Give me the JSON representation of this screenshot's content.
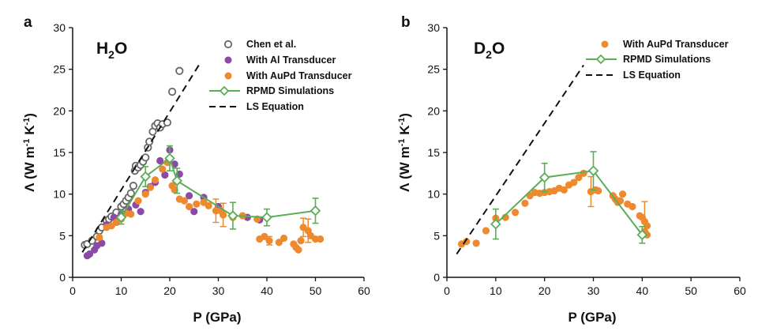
{
  "colors": {
    "chen": "#666666",
    "al": "#8b4aa8",
    "aupd": "#ee8a2d",
    "rpmd": "#5aae56",
    "ls": "#111111",
    "axis": "#111111"
  },
  "chart_data": [
    {
      "type": "scatter",
      "panel_letter": "a",
      "panel_title_main": "H",
      "panel_title_sub": "2",
      "panel_title_end": "O",
      "xlabel": "P (GPa)",
      "ylabel_main": "Λ (W m",
      "ylabel_sup1": "-1",
      "ylabel_mid": " K",
      "ylabel_sup2": "-1",
      "ylabel_end": ")",
      "xlim": [
        0,
        60
      ],
      "ylim": [
        0,
        30
      ],
      "xticks": [
        "0",
        "10",
        "20",
        "30",
        "40",
        "50",
        "60"
      ],
      "yticks": [
        "0",
        "5",
        "10",
        "15",
        "20",
        "25",
        "30"
      ],
      "legend": [
        "Chen et al.",
        "With Al Transducer",
        "With AuPd Transducer",
        "RPMD Simulations",
        "LS Equation"
      ],
      "series": [
        {
          "name": "Chen et al.",
          "style": "open-circle",
          "points": [
            [
              2.5,
              3.9
            ],
            [
              3,
              4
            ],
            [
              4,
              4.4
            ],
            [
              5,
              4.9
            ],
            [
              5.5,
              5.6
            ],
            [
              6,
              6
            ],
            [
              7,
              6.8
            ],
            [
              7.5,
              7
            ],
            [
              8,
              7.3
            ],
            [
              9,
              7.8
            ],
            [
              10,
              8.5
            ],
            [
              10.5,
              8.8
            ],
            [
              11,
              9.2
            ],
            [
              11.5,
              9.6
            ],
            [
              12,
              10.1
            ],
            [
              12.5,
              11
            ],
            [
              12.8,
              12.8
            ],
            [
              13,
              13.4
            ],
            [
              13.5,
              13.2
            ],
            [
              14,
              13.5
            ],
            [
              14.5,
              13.9
            ],
            [
              15,
              14.4
            ],
            [
              15.5,
              15.6
            ],
            [
              15.8,
              16.3
            ],
            [
              16.5,
              17.5
            ],
            [
              17,
              18.2
            ],
            [
              17.5,
              18.5
            ],
            [
              18,
              18
            ],
            [
              18.5,
              18.4
            ],
            [
              19.5,
              18.6
            ],
            [
              20.5,
              22.3
            ],
            [
              22,
              24.8
            ]
          ]
        },
        {
          "name": "With Al Transducer",
          "style": "filled-circle",
          "points": [
            [
              3,
              2.6
            ],
            [
              3.5,
              2.8
            ],
            [
              4.5,
              3.3
            ],
            [
              5,
              3.8
            ],
            [
              6,
              4.1
            ],
            [
              7,
              6.3
            ],
            [
              8.5,
              7.2
            ],
            [
              9.5,
              7.1
            ],
            [
              10,
              7.6
            ],
            [
              11.5,
              8.2
            ],
            [
              13,
              8.7
            ],
            [
              14,
              7.9
            ],
            [
              15,
              10.2
            ],
            [
              16,
              10.9
            ],
            [
              17,
              11.4
            ],
            [
              18,
              14
            ],
            [
              19,
              12.3
            ],
            [
              20,
              15.3
            ],
            [
              21,
              13.6
            ],
            [
              22,
              12.4
            ],
            [
              24,
              9.8
            ],
            [
              25,
              7.9
            ],
            [
              27,
              9.6
            ],
            [
              30,
              8.5
            ],
            [
              33,
              7.4
            ],
            [
              36,
              7.2
            ],
            [
              38.5,
              6.9
            ]
          ]
        },
        {
          "name": "With AuPd Transducer",
          "style": "filled-circle",
          "points": [
            [
              5.5,
              4.8
            ],
            [
              7,
              6
            ],
            [
              8,
              6.2
            ],
            [
              9,
              6.6
            ],
            [
              10,
              7
            ],
            [
              11,
              7.7
            ],
            [
              12,
              7.6
            ],
            [
              13.5,
              9.2
            ],
            [
              15,
              10
            ],
            [
              16,
              10.8
            ],
            [
              17,
              11.7
            ],
            [
              18.5,
              13
            ],
            [
              19.5,
              13.8
            ],
            [
              20.5,
              11
            ],
            [
              21,
              10.5
            ],
            [
              22,
              9.4
            ],
            [
              23,
              9.2
            ],
            [
              24,
              8.5
            ],
            [
              25.5,
              8.8
            ],
            [
              27,
              9
            ],
            [
              28,
              8.6
            ],
            [
              29.5,
              8
            ],
            [
              30.5,
              8
            ],
            [
              31,
              7.5
            ],
            [
              33,
              7.2
            ],
            [
              35,
              7.4
            ],
            [
              38,
              7
            ],
            [
              38.5,
              4.6
            ],
            [
              39.5,
              4.9
            ],
            [
              40.5,
              4.4
            ],
            [
              42.5,
              4.2
            ],
            [
              43.5,
              4.7
            ],
            [
              45.5,
              4
            ],
            [
              46,
              3.6
            ],
            [
              46.5,
              3.3
            ],
            [
              47,
              4.4
            ],
            [
              47.5,
              6
            ],
            [
              48.5,
              5.6
            ],
            [
              49,
              5
            ],
            [
              50,
              4.6
            ],
            [
              51,
              4.6
            ]
          ],
          "error_bars": [
            [
              29.5,
              8,
              1.4
            ],
            [
              31,
              7.5,
              1.4
            ],
            [
              40.5,
              4.4,
              0.5
            ],
            [
              47.5,
              6,
              1.1
            ],
            [
              48.5,
              5.6,
              1.4
            ]
          ]
        },
        {
          "name": "RPMD Simulations",
          "style": "open-diamond-line",
          "points": [
            [
              10,
              7.2
            ],
            [
              15,
              12.1
            ],
            [
              20,
              14.3
            ],
            [
              21.5,
              11.6
            ],
            [
              33,
              7.4
            ],
            [
              40,
              7.2
            ],
            [
              50,
              8
            ]
          ],
          "errors": [
            0.8,
            1.2,
            1.5,
            1.5,
            1.6,
            1.0,
            1.5
          ]
        },
        {
          "name": "LS Equation",
          "style": "dashed-line",
          "points": [
            [
              2,
              3
            ],
            [
              26,
              25.5
            ]
          ]
        }
      ]
    },
    {
      "type": "scatter",
      "panel_letter": "b",
      "panel_title_main": "D",
      "panel_title_sub": "2",
      "panel_title_end": "O",
      "xlabel": "P (GPa)",
      "ylabel_main": "Λ (W m",
      "ylabel_sup1": "-1",
      "ylabel_mid": " K",
      "ylabel_sup2": "-1",
      "ylabel_end": ")",
      "xlim": [
        0,
        60
      ],
      "ylim": [
        0,
        30
      ],
      "xticks": [
        "0",
        "10",
        "20",
        "30",
        "40",
        "50",
        "60"
      ],
      "yticks": [
        "0",
        "5",
        "10",
        "15",
        "20",
        "25",
        "30"
      ],
      "legend": [
        "With AuPd Transducer",
        "RPMD Simulations",
        "LS Equation"
      ],
      "series": [
        {
          "name": "With AuPd Transducer",
          "style": "filled-circle",
          "points": [
            [
              3,
              4
            ],
            [
              4,
              4.3
            ],
            [
              6,
              4.1
            ],
            [
              8,
              5.6
            ],
            [
              10,
              7.1
            ],
            [
              12,
              7.2
            ],
            [
              14,
              7.8
            ],
            [
              16,
              8.9
            ],
            [
              17,
              9.8
            ],
            [
              18,
              10.2
            ],
            [
              19,
              10.1
            ],
            [
              20,
              10.2
            ],
            [
              21,
              10.3
            ],
            [
              22,
              10.4
            ],
            [
              23,
              10.7
            ],
            [
              24,
              10.5
            ],
            [
              25,
              11.1
            ],
            [
              26,
              11.4
            ],
            [
              27,
              12
            ],
            [
              28,
              12.5
            ],
            [
              29.5,
              10.3
            ],
            [
              30.5,
              10.5
            ],
            [
              31,
              10.4
            ],
            [
              34,
              9.8
            ],
            [
              34.5,
              9.4
            ],
            [
              35,
              9
            ],
            [
              35.5,
              9.2
            ],
            [
              36,
              10
            ],
            [
              37,
              8.8
            ],
            [
              38,
              8.5
            ],
            [
              39.5,
              7.4
            ],
            [
              40,
              7.2
            ],
            [
              40.5,
              6.7
            ],
            [
              41,
              6.2
            ],
            [
              40.5,
              5.5
            ],
            [
              41,
              5.1
            ]
          ],
          "error_bars": [
            [
              29.5,
              10.3,
              1.8
            ],
            [
              40.5,
              7.4,
              1.7
            ]
          ]
        },
        {
          "name": "RPMD Simulations",
          "style": "open-diamond-line",
          "points": [
            [
              10,
              6.4
            ],
            [
              20,
              12
            ],
            [
              30,
              12.8
            ],
            [
              40,
              5.1
            ]
          ],
          "errors": [
            1.8,
            1.7,
            2.3,
            1.0
          ]
        },
        {
          "name": "LS Equation",
          "style": "dashed-line",
          "points": [
            [
              2,
              2.8
            ],
            [
              28,
              25.5
            ]
          ]
        }
      ]
    }
  ]
}
